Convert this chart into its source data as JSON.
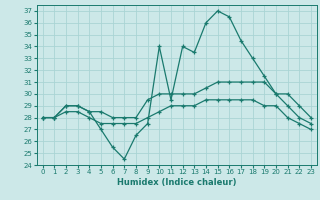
{
  "xlabel": "Humidex (Indice chaleur)",
  "xlim": [
    -0.5,
    23.5
  ],
  "ylim": [
    24,
    37.5
  ],
  "yticks": [
    24,
    25,
    26,
    27,
    28,
    29,
    30,
    31,
    32,
    33,
    34,
    35,
    36,
    37
  ],
  "xticks": [
    0,
    1,
    2,
    3,
    4,
    5,
    6,
    7,
    8,
    9,
    10,
    11,
    12,
    13,
    14,
    15,
    16,
    17,
    18,
    19,
    20,
    21,
    22,
    23
  ],
  "background_color": "#cce8e8",
  "grid_color": "#b0d8d8",
  "line_color": "#1a7a6e",
  "line1": [
    28,
    28,
    29,
    29,
    28.5,
    27,
    25.5,
    24.5,
    26.5,
    27.5,
    34,
    29.5,
    34,
    33.5,
    36,
    37,
    36.5,
    34.5,
    33,
    31.5,
    30,
    29,
    28,
    27.5
  ],
  "line2": [
    28,
    28,
    29,
    29,
    28.5,
    28.5,
    28,
    28,
    28,
    29.5,
    30,
    30,
    30,
    30,
    30.5,
    31,
    31,
    31,
    31,
    31,
    30,
    30,
    29,
    28
  ],
  "line3": [
    28,
    28,
    28.5,
    28.5,
    28,
    27.5,
    27.5,
    27.5,
    27.5,
    28,
    28.5,
    29,
    29,
    29,
    29.5,
    29.5,
    29.5,
    29.5,
    29.5,
    29,
    29,
    28,
    27.5,
    27
  ]
}
